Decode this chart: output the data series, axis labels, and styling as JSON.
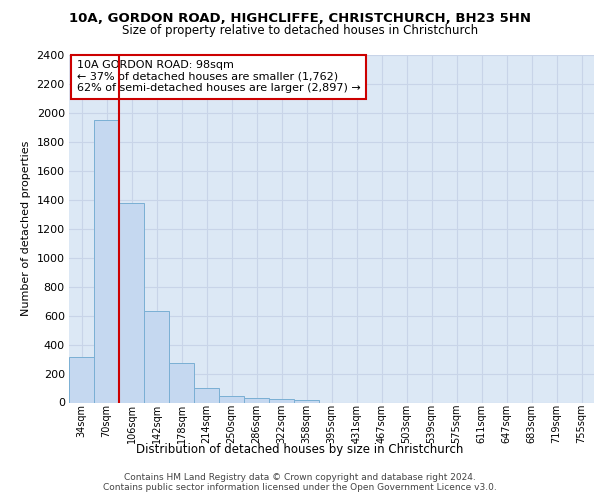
{
  "title1": "10A, GORDON ROAD, HIGHCLIFFE, CHRISTCHURCH, BH23 5HN",
  "title2": "Size of property relative to detached houses in Christchurch",
  "xlabel": "Distribution of detached houses by size in Christchurch",
  "ylabel": "Number of detached properties",
  "bar_values": [
    315,
    1950,
    1380,
    630,
    270,
    100,
    48,
    32,
    22,
    20,
    0,
    0,
    0,
    0,
    0,
    0,
    0,
    0,
    0,
    0,
    0
  ],
  "bar_labels": [
    "34sqm",
    "70sqm",
    "106sqm",
    "142sqm",
    "178sqm",
    "214sqm",
    "250sqm",
    "286sqm",
    "322sqm",
    "358sqm",
    "395sqm",
    "431sqm",
    "467sqm",
    "503sqm",
    "539sqm",
    "575sqm",
    "611sqm",
    "647sqm",
    "683sqm",
    "719sqm",
    "755sqm"
  ],
  "bar_color": "#c5d8f0",
  "bar_edge_color": "#7aafd4",
  "red_line_x": 2.0,
  "annotation_line1": "10A GORDON ROAD: 98sqm",
  "annotation_line2": "← 37% of detached houses are smaller (1,762)",
  "annotation_line3": "62% of semi-detached houses are larger (2,897) →",
  "annotation_box_color": "#ffffff",
  "annotation_box_edge": "#cc0000",
  "red_line_color": "#cc0000",
  "footer1": "Contains HM Land Registry data © Crown copyright and database right 2024.",
  "footer2": "Contains public sector information licensed under the Open Government Licence v3.0.",
  "ylim": [
    0,
    2400
  ],
  "yticks": [
    0,
    200,
    400,
    600,
    800,
    1000,
    1200,
    1400,
    1600,
    1800,
    2000,
    2200,
    2400
  ],
  "grid_color": "#c8d4e8",
  "plot_bg_color": "#dce8f5"
}
